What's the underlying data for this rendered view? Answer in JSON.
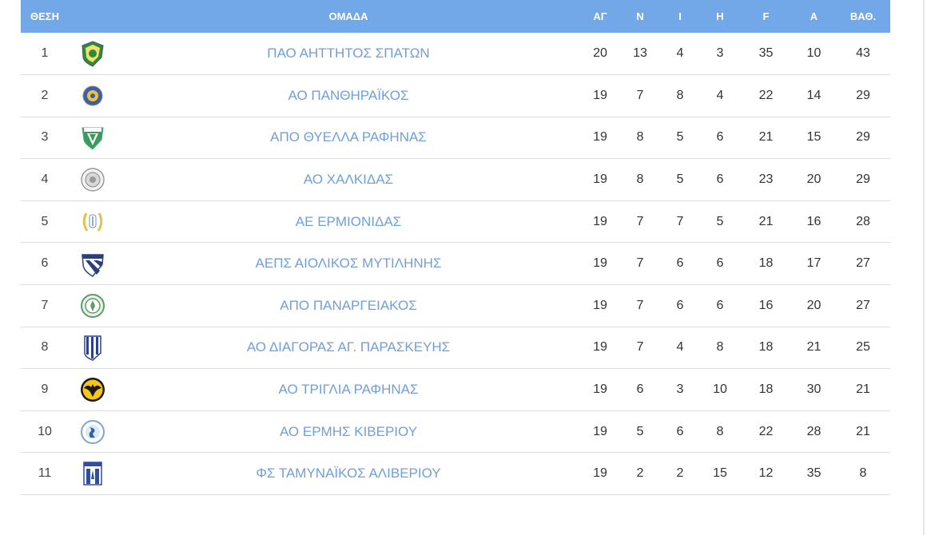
{
  "headers": {
    "position": "ΘΕΣΗ",
    "team": "ΟΜΑΔΑ",
    "played": "ΑΓ",
    "wins": "Ν",
    "draws": "Ι",
    "losses": "Η",
    "goals_for": "F",
    "goals_against": "A",
    "points": "ΒΑΘ."
  },
  "colors": {
    "header_bg": "#72a7e8",
    "team_link": "#6e9fdc",
    "row_border": "#dcdcdc"
  },
  "rows": [
    {
      "pos": "1",
      "team": "ΠΑΟ ΑΗΤΤΗΤΟΣ ΣΠΑΤΩΝ",
      "played": "20",
      "wins": "13",
      "draws": "4",
      "losses": "3",
      "gf": "35",
      "ga": "10",
      "pts": "43",
      "logo": "green-yellow-shield-icon"
    },
    {
      "pos": "2",
      "team": "ΑΟ ΠΑΝΘΗΡΑΪΚΟΣ",
      "played": "19",
      "wins": "7",
      "draws": "8",
      "losses": "4",
      "gf": "22",
      "ga": "14",
      "pts": "29",
      "logo": "blue-yellow-round-crest-icon"
    },
    {
      "pos": "3",
      "team": "ΑΠΟ ΘΥΕΛΛΑ ΡΑΦΗΝΑΣ",
      "played": "19",
      "wins": "8",
      "draws": "5",
      "losses": "6",
      "gf": "21",
      "ga": "15",
      "pts": "29",
      "logo": "green-white-shield-icon"
    },
    {
      "pos": "4",
      "team": "ΑΟ ΧΑΛΚΙΔΑΣ",
      "played": "19",
      "wins": "8",
      "draws": "5",
      "losses": "6",
      "gf": "23",
      "ga": "20",
      "pts": "29",
      "logo": "grey-circle-crest-icon"
    },
    {
      "pos": "5",
      "team": "ΑΕ ΕΡΜΙΟΝΙΔΑΣ",
      "played": "19",
      "wins": "7",
      "draws": "7",
      "losses": "5",
      "gf": "21",
      "ga": "16",
      "pts": "28",
      "logo": "laurel-wreath-crest-icon"
    },
    {
      "pos": "6",
      "team": "ΑΕΠΣ ΑΙΟΛΙΚΟΣ ΜΥΤΙΛΗΝΗΣ",
      "played": "19",
      "wins": "7",
      "draws": "6",
      "losses": "6",
      "gf": "18",
      "ga": "17",
      "pts": "27",
      "logo": "blue-white-striped-shield-icon"
    },
    {
      "pos": "7",
      "team": "ΑΠΟ ΠΑΝΑΡΓΕΙΑΚΟΣ",
      "played": "19",
      "wins": "7",
      "draws": "6",
      "losses": "6",
      "gf": "16",
      "ga": "20",
      "pts": "27",
      "logo": "green-circle-crest-icon"
    },
    {
      "pos": "8",
      "team": "ΑΟ ΔΙΑΓΟΡΑΣ ΑΓ. ΠΑΡΑΣΚΕΥΗΣ",
      "played": "19",
      "wins": "7",
      "draws": "4",
      "losses": "8",
      "gf": "18",
      "ga": "21",
      "pts": "25",
      "logo": "blue-striped-shield-icon"
    },
    {
      "pos": "9",
      "team": "ΑΟ ΤΡΙΓΛΙΑ ΡΑΦΗΝΑΣ",
      "played": "19",
      "wins": "6",
      "draws": "3",
      "losses": "10",
      "gf": "18",
      "ga": "30",
      "pts": "21",
      "logo": "yellow-black-eagle-icon"
    },
    {
      "pos": "10",
      "team": "ΑΟ ΕΡΜΗΣ ΚΙΒΕΡΙΟΥ",
      "played": "19",
      "wins": "5",
      "draws": "6",
      "losses": "8",
      "gf": "22",
      "ga": "28",
      "pts": "21",
      "logo": "blue-white-round-crest-icon"
    },
    {
      "pos": "11",
      "team": "ΦΣ ΤΑΜΥΝΑΪΚΟΣ ΑΛΙΒΕΡΙΟΥ",
      "played": "19",
      "wins": "2",
      "draws": "2",
      "losses": "15",
      "gf": "12",
      "ga": "35",
      "pts": "8",
      "logo": "blue-square-crest-icon"
    }
  ]
}
